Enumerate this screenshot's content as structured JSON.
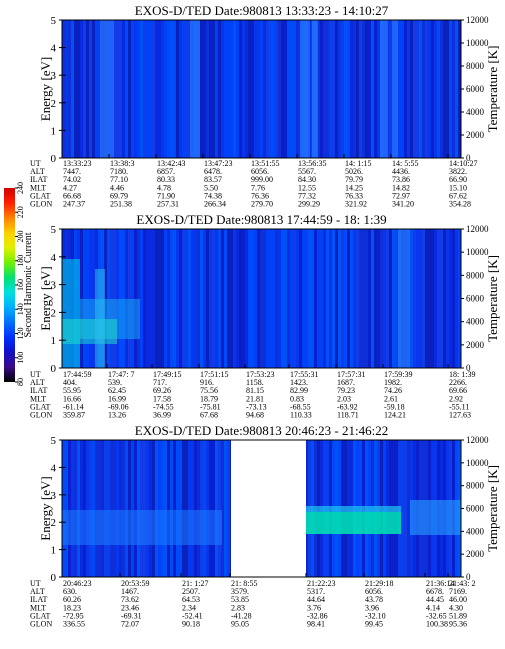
{
  "chart_data": [
    {
      "type": "heatmap",
      "title": "EXOS-D/TED   Date:980813  13:33:23 - 14:10:27",
      "ylabel": "Energy [eV]",
      "ylabel_right": "Temperature [K]",
      "ylim": [
        0,
        5
      ],
      "yticks": [
        "0",
        "1",
        "2",
        "3",
        "4",
        "5"
      ],
      "ylim_right": [
        0,
        12000
      ],
      "yticks_right": [
        "0",
        "2000",
        "4000",
        "6000",
        "8000",
        "10000",
        "12000"
      ],
      "row_labels": [
        "UT",
        "ALT",
        "ILAT",
        "MLT",
        "GLAT",
        "GLON"
      ],
      "columns": [
        [
          "13:33:23",
          "7447.",
          "74.02",
          "4.27",
          "66.68",
          "247.37"
        ],
        [
          "13:38:3",
          "7180.",
          "77.10",
          "4.46",
          "69.79",
          "251.38"
        ],
        [
          "13:42:43",
          "6857.",
          "80.33",
          "4.78",
          "71.90",
          "257.31"
        ],
        [
          "13:47:23",
          "6478.",
          "83.57",
          "5.50",
          "74.38",
          "266.34"
        ],
        [
          "13:51:55",
          "6056.",
          "999.00",
          "7.76",
          "76.36",
          "279.70"
        ],
        [
          "13:56:35",
          "5567.",
          "84.30",
          "12.55",
          "77.32",
          "299.29"
        ],
        [
          "14: 1:15",
          "5026.",
          "79.79",
          "14.25",
          "76.33",
          "321.92"
        ],
        [
          "14: 5:55",
          "4436.",
          "73.86",
          "14.82",
          "72.97",
          "341.20"
        ],
        [
          "14:10:27",
          "3822.",
          "66.90",
          "15.10",
          "67.62",
          "354.28"
        ]
      ]
    },
    {
      "type": "heatmap",
      "title": "EXOS-D/TED   Date:980813  17:44:59 - 18: 1:39",
      "ylabel": "Energy [eV]",
      "ylabel_right": "Temperature [K]",
      "ylim": [
        0,
        5
      ],
      "yticks": [
        "0",
        "1",
        "2",
        "3",
        "4",
        "5"
      ],
      "ylim_right": [
        0,
        12000
      ],
      "yticks_right": [
        "0",
        "2000",
        "4000",
        "6000",
        "8000",
        "10000",
        "12000"
      ],
      "row_labels": [
        "UT",
        "ALT",
        "ILAT",
        "MLT",
        "GLAT",
        "GLON"
      ],
      "columns": [
        [
          "17:44:59",
          "404.",
          "55.95",
          "16.66",
          "-61.14",
          "359.87"
        ],
        [
          "17:47: 7",
          "539.",
          "62.45",
          "16.99",
          "-69.06",
          "13.26"
        ],
        [
          "17:49:15",
          "717.",
          "69.26",
          "17.58",
          "-74.55",
          "36.99"
        ],
        [
          "17:51:15",
          "916.",
          "75.56",
          "18.79",
          "-75.81",
          "67.68"
        ],
        [
          "17:53:23",
          "1158.",
          "81.15",
          "21.81",
          "-73.13",
          "94.68"
        ],
        [
          "17:55:31",
          "1423.",
          "82.99",
          "0.83",
          "-68.55",
          "110.33"
        ],
        [
          "17:57:31",
          "1687.",
          "79.23",
          "2.03",
          "-63.92",
          "118.71"
        ],
        [
          "17:59:39",
          "1982.",
          "74.26",
          "2.61",
          "-59.18",
          "124.21"
        ],
        [
          "18: 1:39",
          "2266.",
          "69.66",
          "2.92",
          "-55.11",
          "127.63"
        ]
      ]
    },
    {
      "type": "heatmap",
      "title": "EXOS-D/TED   Date:980813  20:46:23 - 21:46:22",
      "ylabel": "Energy [eV]",
      "ylabel_right": "Temperature [K]",
      "ylim": [
        0,
        5
      ],
      "yticks": [
        "0",
        "1",
        "2",
        "3",
        "4",
        "5"
      ],
      "ylim_right": [
        0,
        12000
      ],
      "yticks_right": [
        "0",
        "2000",
        "4000",
        "6000",
        "8000",
        "10000",
        "12000"
      ],
      "row_labels": [
        "UT",
        "ALT",
        "ILAT",
        "MLT",
        "GLAT",
        "GLON"
      ],
      "columns": [
        [
          "20:46:23",
          "630.",
          "60.26",
          "18.23",
          "-72.95",
          "336.55"
        ],
        [
          "20:53:59",
          "1467.",
          "73.62",
          "23.46",
          "-69.31",
          "72.07"
        ],
        [
          "21: 1:27",
          "2507.",
          "64.53",
          "2.34",
          "-52.41",
          "90.18"
        ],
        [
          "21: 8:55",
          "3579.",
          "53.85",
          "2.83",
          "-41.28",
          "95.05"
        ],
        [
          "21:22:23",
          "5317.",
          "44.64",
          "3.76",
          "-32.86",
          "98.41"
        ],
        [
          "21:29:18",
          "6056.",
          "43.78",
          "3.96",
          "-32.10",
          "99.45"
        ],
        [
          "21:36:14",
          "6678.",
          "44.45",
          "4.14",
          "-32.65",
          "100.38"
        ],
        [
          "21:43: 2",
          "7169.",
          "46.00",
          "4.30",
          "51.89",
          "95.36"
        ]
      ]
    }
  ],
  "colorbar": {
    "label": "Second Harmonic Current",
    "ticks": [
      "80",
      "100",
      "120",
      "140",
      "160",
      "180",
      "200",
      "220",
      "240"
    ],
    "colors": [
      "#000000",
      "#3a0a8a",
      "#1010c8",
      "#0030ff",
      "#0070ff",
      "#00b0ff",
      "#00e0e0",
      "#00e070",
      "#70f000",
      "#e0f000",
      "#ffd000",
      "#ff8000",
      "#ff2000",
      "#d00000"
    ]
  }
}
